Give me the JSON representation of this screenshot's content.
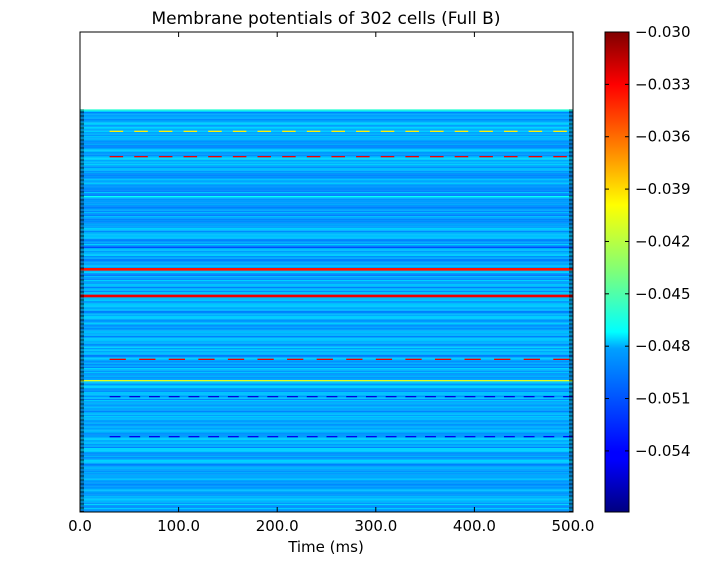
{
  "chart_data": {
    "type": "heatmap",
    "title": "Membrane potentials of 302 cells (Full B)",
    "xlabel": "Time (ms)",
    "ylabel": "",
    "xlim": [
      0,
      500
    ],
    "x_ticks": [
      0,
      100,
      200,
      300,
      400,
      500
    ],
    "x_tick_labels": [
      "0.0",
      "100.0",
      "200.0",
      "300.0",
      "400.0",
      "500.0"
    ],
    "y_axis_note": "302 overlapping cell-name tick labels (illegible in source); row labels not recoverable",
    "y_rows_shown": 302,
    "y_max_axis_rows": 360,
    "colormap": "jet",
    "colorbar": {
      "vmin": -0.0575,
      "vmax": -0.03,
      "ticks": [
        -0.03,
        -0.033,
        -0.036,
        -0.039,
        -0.042,
        -0.045,
        -0.048,
        -0.051,
        -0.054
      ],
      "tick_labels": [
        "−0.030",
        "−0.033",
        "−0.036",
        "−0.039",
        "−0.042",
        "−0.045",
        "−0.048",
        "−0.051",
        "−0.054"
      ]
    },
    "baseline_value": -0.0495,
    "notable_rows": [
      {
        "row": 0,
        "value": -0.046,
        "pattern": "constant"
      },
      {
        "row": 16,
        "value": -0.04,
        "pattern": "dashed",
        "period_ms": 25
      },
      {
        "row": 35,
        "value": -0.033,
        "pattern": "dashed",
        "period_ms": 25
      },
      {
        "row": 65,
        "value": -0.047,
        "pattern": "constant"
      },
      {
        "row": 103,
        "value": -0.052,
        "pattern": "constant"
      },
      {
        "row": 120,
        "value": -0.034,
        "pattern": "band"
      },
      {
        "row": 140,
        "value": -0.033,
        "pattern": "band"
      },
      {
        "row": 187,
        "value": -0.033,
        "pattern": "dashed",
        "period_ms": 30
      },
      {
        "row": 203,
        "value": -0.041,
        "pattern": "constant"
      },
      {
        "row": 215,
        "value": -0.055,
        "pattern": "wave",
        "period_ms": 20
      },
      {
        "row": 245,
        "value": -0.0545,
        "pattern": "wave",
        "period_ms": 20
      }
    ]
  }
}
